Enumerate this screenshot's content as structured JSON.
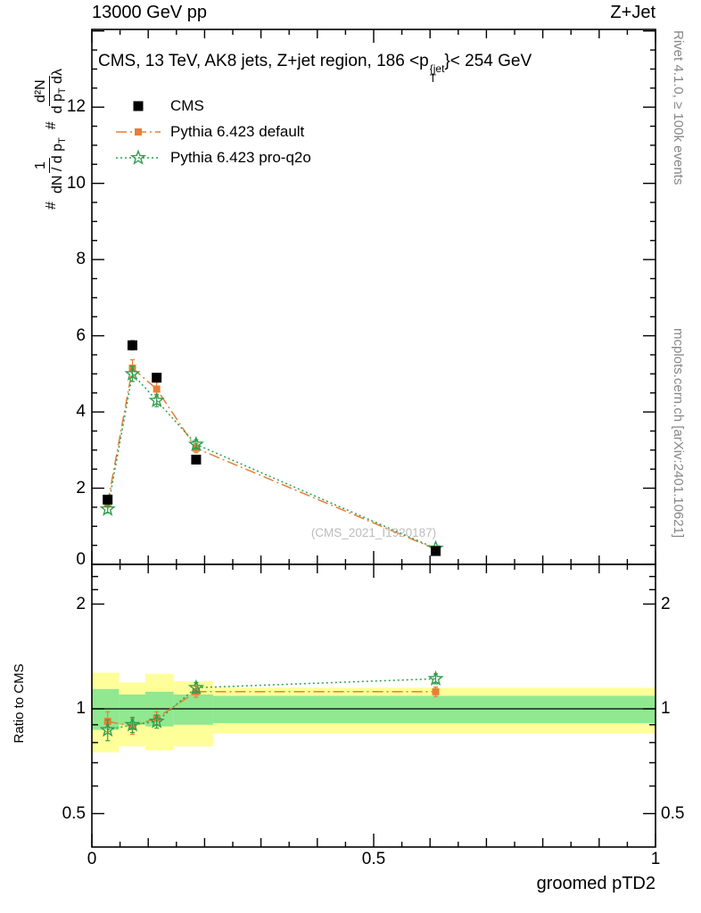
{
  "header": {
    "left": "13000 GeV pp",
    "right": "Z+Jet"
  },
  "title": {
    "pre": "CMS, 13 TeV, AK8 jets, Z+jet region, 186 <p",
    "sup": "{jet",
    "sub": "T",
    "post": "}< 254 GeV"
  },
  "ylabel": {
    "hash1": "#",
    "num1": "1",
    "den1": "dN / d p",
    "den1_sub": "T",
    "hash2": "#",
    "num2": "d²N",
    "den2": "d p",
    "den2_sub": "T",
    "den2_tail": " dλ"
  },
  "side_notes": {
    "right_top": "Rivet 4.1.0, ≥ 100k events",
    "right_bottom": "mcplots.cern.ch [arXiv:2401.10621]"
  },
  "watermark": "(CMS_2021_I1920187)",
  "chart_data": {
    "type": "line",
    "title": "CMS, 13 TeV, AK8 jets, Z+jet region, 186 < pT{jet} < 254 GeV",
    "xlabel": "groomed pTD2",
    "xlim": [
      0,
      1
    ],
    "x_ticks": [
      {
        "v": 0,
        "label": "0"
      },
      {
        "v": 0.5,
        "label": "0.5"
      },
      {
        "v": 1,
        "label": "1"
      }
    ],
    "colors": {
      "cms": "#000000",
      "pythia_default": "#e87f33",
      "pythia_proq2o": "#2f9e4f",
      "band_yellow": "#ffff99",
      "band_green": "#90e890"
    },
    "main": {
      "ylim": [
        0,
        14
      ],
      "y_ticks": [
        0,
        2,
        4,
        6,
        8,
        10,
        12
      ],
      "series": [
        {
          "name": "Pythia 6.423 default",
          "marker": "square",
          "size": 8,
          "color": "#e87f33",
          "line": "dashdot",
          "x": [
            0.028,
            0.072,
            0.115,
            0.185,
            0.61
          ],
          "y": [
            1.6,
            5.15,
            4.6,
            3.05,
            0.4
          ],
          "yerr": [
            0.1,
            0.22,
            0.18,
            0.12,
            0.04
          ]
        },
        {
          "name": "Pythia 6.423 pro-q2o",
          "marker": "star",
          "size": 15,
          "color": "#2f9e4f",
          "line": "dotted",
          "x": [
            0.028,
            0.072,
            0.115,
            0.185,
            0.61
          ],
          "y": [
            1.45,
            5.0,
            4.3,
            3.15,
            0.42
          ],
          "yerr": [
            0.1,
            0.2,
            0.16,
            0.12,
            0.04
          ]
        },
        {
          "name": "CMS",
          "marker": "square",
          "size": 11,
          "color": "#000000",
          "line": "none",
          "x": [
            0.028,
            0.072,
            0.115,
            0.185,
            0.61
          ],
          "y": [
            1.7,
            5.75,
            4.9,
            2.75,
            0.35
          ],
          "yerr": [
            0.08,
            0.12,
            0.1,
            0.08,
            0.03
          ]
        }
      ]
    },
    "ratio": {
      "ylabel": "Ratio to CMS",
      "scale": "log",
      "ylim": [
        0.4,
        2.6
      ],
      "reference_line": 1,
      "y_ticks": [
        {
          "v": 0.5,
          "label": "0.5"
        },
        {
          "v": 1,
          "label": "1"
        },
        {
          "v": 2,
          "label": "2"
        }
      ],
      "bands": [
        {
          "x0": 0.0,
          "x1": 0.048,
          "yellow": [
            0.75,
            1.27
          ],
          "green": [
            0.87,
            1.14
          ]
        },
        {
          "x0": 0.048,
          "x1": 0.095,
          "yellow": [
            0.78,
            1.19
          ],
          "green": [
            0.9,
            1.1
          ]
        },
        {
          "x0": 0.095,
          "x1": 0.145,
          "yellow": [
            0.76,
            1.26
          ],
          "green": [
            0.89,
            1.12
          ]
        },
        {
          "x0": 0.145,
          "x1": 0.215,
          "yellow": [
            0.78,
            1.2
          ],
          "green": [
            0.9,
            1.1
          ]
        },
        {
          "x0": 0.215,
          "x1": 1.0,
          "yellow": [
            0.85,
            1.15
          ],
          "green": [
            0.91,
            1.09
          ]
        }
      ],
      "series": [
        {
          "name": "Pythia 6.423 default",
          "marker": "square",
          "size": 8,
          "color": "#e87f33",
          "line": "dashdot",
          "x": [
            0.028,
            0.072,
            0.115,
            0.185,
            0.61
          ],
          "y": [
            0.92,
            0.89,
            0.94,
            1.12,
            1.12
          ],
          "yerr": [
            0.06,
            0.045,
            0.04,
            0.04,
            0.035
          ]
        },
        {
          "name": "Pythia 6.423 pro-q2o",
          "marker": "star",
          "size": 15,
          "color": "#2f9e4f",
          "line": "dotted",
          "x": [
            0.028,
            0.072,
            0.115,
            0.185,
            0.61
          ],
          "y": [
            0.87,
            0.9,
            0.92,
            1.15,
            1.22
          ],
          "yerr": [
            0.06,
            0.045,
            0.04,
            0.04,
            0.04
          ]
        }
      ]
    },
    "legend": [
      {
        "label": "CMS",
        "marker": "square",
        "size": 11,
        "color": "#000000",
        "line": "none"
      },
      {
        "label": "Pythia 6.423 default",
        "marker": "square",
        "size": 8,
        "color": "#e87f33",
        "line": "dashdot"
      },
      {
        "label": "Pythia 6.423 pro-q2o",
        "marker": "star",
        "size": 15,
        "color": "#2f9e4f",
        "line": "dotted"
      }
    ]
  }
}
